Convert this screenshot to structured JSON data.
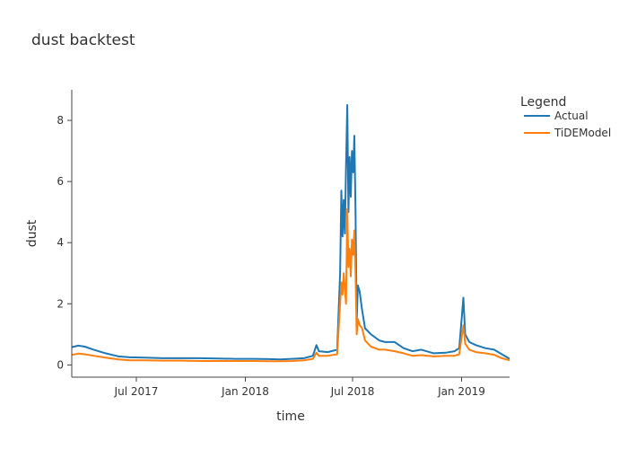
{
  "chart_data": {
    "type": "line",
    "title": "dust backtest",
    "xlabel": "time",
    "ylabel": "dust",
    "xlim": [
      "2017-03-14",
      "2019-03-23"
    ],
    "ylim": [
      -0.4,
      9.0
    ],
    "x_ticks": [
      {
        "date": "2017-07-01",
        "label": "Jul 2017"
      },
      {
        "date": "2018-01-01",
        "label": "Jan 2018"
      },
      {
        "date": "2018-07-01",
        "label": "Jul 2018"
      },
      {
        "date": "2019-01-01",
        "label": "Jan 2019"
      }
    ],
    "y_ticks": [
      0,
      2,
      4,
      6,
      8
    ],
    "grid": false,
    "legend": {
      "title": "Legend",
      "placement": "top-right"
    },
    "series": [
      {
        "name": "Actual",
        "color": "#1f77b4",
        "points": [
          [
            "2017-03-14",
            0.58
          ],
          [
            "2017-03-25",
            0.63
          ],
          [
            "2017-04-05",
            0.6
          ],
          [
            "2017-04-20",
            0.5
          ],
          [
            "2017-05-10",
            0.38
          ],
          [
            "2017-06-01",
            0.28
          ],
          [
            "2017-06-20",
            0.25
          ],
          [
            "2017-07-15",
            0.24
          ],
          [
            "2017-08-15",
            0.22
          ],
          [
            "2017-09-15",
            0.22
          ],
          [
            "2017-10-15",
            0.22
          ],
          [
            "2017-11-15",
            0.21
          ],
          [
            "2017-12-15",
            0.2
          ],
          [
            "2018-01-15",
            0.2
          ],
          [
            "2018-02-10",
            0.19
          ],
          [
            "2018-03-01",
            0.18
          ],
          [
            "2018-03-20",
            0.2
          ],
          [
            "2018-04-10",
            0.22
          ],
          [
            "2018-04-25",
            0.3
          ],
          [
            "2018-05-01",
            0.65
          ],
          [
            "2018-05-05",
            0.45
          ],
          [
            "2018-05-20",
            0.42
          ],
          [
            "2018-06-05",
            0.5
          ],
          [
            "2018-06-10",
            3.0
          ],
          [
            "2018-06-12",
            5.7
          ],
          [
            "2018-06-14",
            4.2
          ],
          [
            "2018-06-16",
            5.4
          ],
          [
            "2018-06-18",
            4.3
          ],
          [
            "2018-06-20",
            6.5
          ],
          [
            "2018-06-22",
            8.5
          ],
          [
            "2018-06-24",
            5.0
          ],
          [
            "2018-06-26",
            6.8
          ],
          [
            "2018-06-28",
            5.5
          ],
          [
            "2018-06-30",
            7.0
          ],
          [
            "2018-07-02",
            6.3
          ],
          [
            "2018-07-04",
            7.5
          ],
          [
            "2018-07-06",
            5.0
          ],
          [
            "2018-07-08",
            1.4
          ],
          [
            "2018-07-10",
            2.6
          ],
          [
            "2018-07-13",
            2.4
          ],
          [
            "2018-07-17",
            1.8
          ],
          [
            "2018-07-22",
            1.2
          ],
          [
            "2018-08-01",
            1.0
          ],
          [
            "2018-08-15",
            0.8
          ],
          [
            "2018-08-25",
            0.75
          ],
          [
            "2018-09-10",
            0.75
          ],
          [
            "2018-09-25",
            0.55
          ],
          [
            "2018-10-10",
            0.45
          ],
          [
            "2018-10-25",
            0.5
          ],
          [
            "2018-11-15",
            0.38
          ],
          [
            "2018-12-05",
            0.4
          ],
          [
            "2018-12-20",
            0.45
          ],
          [
            "2018-12-28",
            0.55
          ],
          [
            "2019-01-04",
            2.2
          ],
          [
            "2019-01-07",
            1.0
          ],
          [
            "2019-01-14",
            0.75
          ],
          [
            "2019-01-25",
            0.65
          ],
          [
            "2019-02-10",
            0.55
          ],
          [
            "2019-02-25",
            0.5
          ],
          [
            "2019-03-10",
            0.35
          ],
          [
            "2019-03-23",
            0.2
          ]
        ]
      },
      {
        "name": "TiDEModel",
        "color": "#ff7f0e",
        "points": [
          [
            "2017-03-14",
            0.33
          ],
          [
            "2017-03-25",
            0.37
          ],
          [
            "2017-04-05",
            0.35
          ],
          [
            "2017-04-20",
            0.3
          ],
          [
            "2017-05-10",
            0.24
          ],
          [
            "2017-06-01",
            0.18
          ],
          [
            "2017-06-20",
            0.15
          ],
          [
            "2017-07-15",
            0.15
          ],
          [
            "2017-08-15",
            0.14
          ],
          [
            "2017-09-15",
            0.14
          ],
          [
            "2017-10-15",
            0.13
          ],
          [
            "2017-11-15",
            0.13
          ],
          [
            "2017-12-15",
            0.13
          ],
          [
            "2018-01-15",
            0.13
          ],
          [
            "2018-02-10",
            0.12
          ],
          [
            "2018-03-01",
            0.12
          ],
          [
            "2018-03-20",
            0.13
          ],
          [
            "2018-04-10",
            0.15
          ],
          [
            "2018-04-25",
            0.2
          ],
          [
            "2018-05-01",
            0.4
          ],
          [
            "2018-05-05",
            0.3
          ],
          [
            "2018-05-20",
            0.3
          ],
          [
            "2018-06-05",
            0.35
          ],
          [
            "2018-06-10",
            2.0
          ],
          [
            "2018-06-12",
            2.7
          ],
          [
            "2018-06-14",
            2.3
          ],
          [
            "2018-06-16",
            3.0
          ],
          [
            "2018-06-18",
            2.5
          ],
          [
            "2018-06-20",
            2.0
          ],
          [
            "2018-06-22",
            5.1
          ],
          [
            "2018-06-24",
            3.2
          ],
          [
            "2018-06-26",
            3.8
          ],
          [
            "2018-06-28",
            2.9
          ],
          [
            "2018-06-30",
            4.1
          ],
          [
            "2018-07-02",
            3.6
          ],
          [
            "2018-07-04",
            4.4
          ],
          [
            "2018-07-06",
            3.0
          ],
          [
            "2018-07-08",
            1.0
          ],
          [
            "2018-07-10",
            1.5
          ],
          [
            "2018-07-13",
            1.3
          ],
          [
            "2018-07-17",
            1.2
          ],
          [
            "2018-07-22",
            0.8
          ],
          [
            "2018-08-01",
            0.6
          ],
          [
            "2018-08-15",
            0.5
          ],
          [
            "2018-08-25",
            0.5
          ],
          [
            "2018-09-10",
            0.45
          ],
          [
            "2018-09-25",
            0.38
          ],
          [
            "2018-10-10",
            0.3
          ],
          [
            "2018-10-25",
            0.32
          ],
          [
            "2018-11-15",
            0.28
          ],
          [
            "2018-12-05",
            0.3
          ],
          [
            "2018-12-20",
            0.3
          ],
          [
            "2018-12-28",
            0.35
          ],
          [
            "2019-01-04",
            1.3
          ],
          [
            "2019-01-07",
            0.7
          ],
          [
            "2019-01-14",
            0.5
          ],
          [
            "2019-01-25",
            0.42
          ],
          [
            "2019-02-10",
            0.38
          ],
          [
            "2019-02-25",
            0.33
          ],
          [
            "2019-03-10",
            0.22
          ],
          [
            "2019-03-23",
            0.15
          ]
        ]
      }
    ]
  }
}
